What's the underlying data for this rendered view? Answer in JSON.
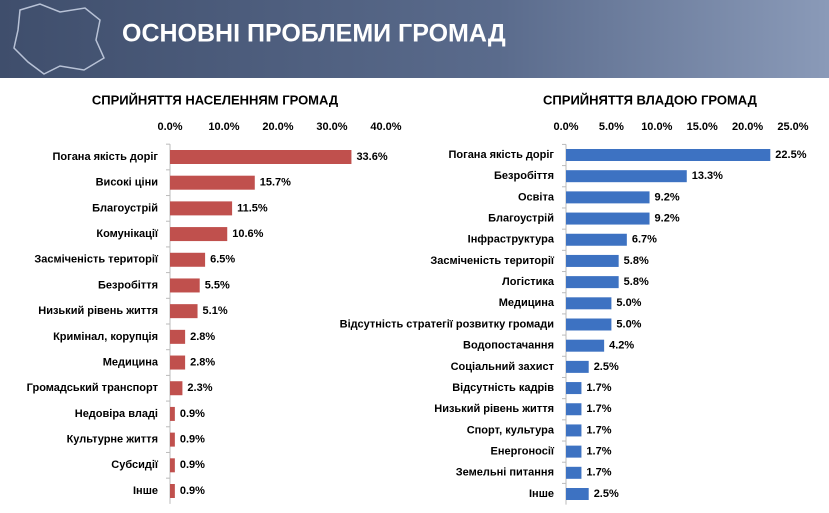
{
  "header": {
    "title": "ОСНОВНІ ПРОБЛЕМИ ГРОМАД"
  },
  "chart_data": [
    {
      "type": "bar",
      "orientation": "horizontal",
      "title": "СПРИЙНЯТТЯ НАСЕЛЕННЯМ ГРОМАД",
      "categories": [
        "Погана якість доріг",
        "Високі ціни",
        "Благоустрій",
        "Комунікації",
        "Засміченість території",
        "Безробіття",
        "Низький рівень життя",
        "Кримінал, корупція",
        "Медицина",
        "Громадський транспорт",
        "Недовіра владі",
        "Культурне життя",
        "Субсидії",
        "Інше"
      ],
      "values": [
        33.6,
        15.7,
        11.5,
        10.6,
        6.5,
        5.5,
        5.1,
        2.8,
        2.8,
        2.3,
        0.9,
        0.9,
        0.9,
        0.9
      ],
      "value_labels": [
        "33.6%",
        "15.7%",
        "11.5%",
        "10.6%",
        "6.5%",
        "5.5%",
        "5.1%",
        "2.8%",
        "2.8%",
        "2.3%",
        "0.9%",
        "0.9%",
        "0.9%",
        "0.9%"
      ],
      "color": "#c0504d",
      "xlim": [
        0,
        40
      ],
      "xticks": [
        {
          "value": 0,
          "label": "0.0%"
        },
        {
          "value": 10,
          "label": "10.0%"
        },
        {
          "value": 20,
          "label": "20.0%"
        },
        {
          "value": 30,
          "label": "30.0%"
        },
        {
          "value": 40,
          "label": "40.0%"
        }
      ]
    },
    {
      "type": "bar",
      "orientation": "horizontal",
      "title": "СПРИЙНЯТТЯ ВЛАДОЮ ГРОМАД",
      "categories": [
        "Погана якість доріг",
        "Безробіття",
        "Освіта",
        "Благоустрій",
        "Інфраструктура",
        "Засміченість території",
        "Логістика",
        "Медицина",
        "Відсутність стратегії розвитку громади",
        "Водопостачання",
        "Соціальний захист",
        "Відсутність кадрів",
        "Низький рівень життя",
        "Спорт, культура",
        "Енергоносії",
        "Земельні питання",
        "Інше"
      ],
      "values": [
        22.5,
        13.3,
        9.2,
        9.2,
        6.7,
        5.8,
        5.8,
        5.0,
        5.0,
        4.2,
        2.5,
        1.7,
        1.7,
        1.7,
        1.7,
        1.7,
        2.5
      ],
      "value_labels": [
        "22.5%",
        "13.3%",
        "9.2%",
        "9.2%",
        "6.7%",
        "5.8%",
        "5.8%",
        "5.0%",
        "5.0%",
        "4.2%",
        "2.5%",
        "1.7%",
        "1.7%",
        "1.7%",
        "1.7%",
        "1.7%",
        "2.5%"
      ],
      "color": "#3d72c2",
      "xlim": [
        0,
        25
      ],
      "xticks": [
        {
          "value": 0,
          "label": "0.0%"
        },
        {
          "value": 5,
          "label": "5.0%"
        },
        {
          "value": 10,
          "label": "10.0%"
        },
        {
          "value": 15,
          "label": "15.0%"
        },
        {
          "value": 20,
          "label": "20.0%"
        },
        {
          "value": 25,
          "label": "25.0%"
        }
      ]
    }
  ]
}
